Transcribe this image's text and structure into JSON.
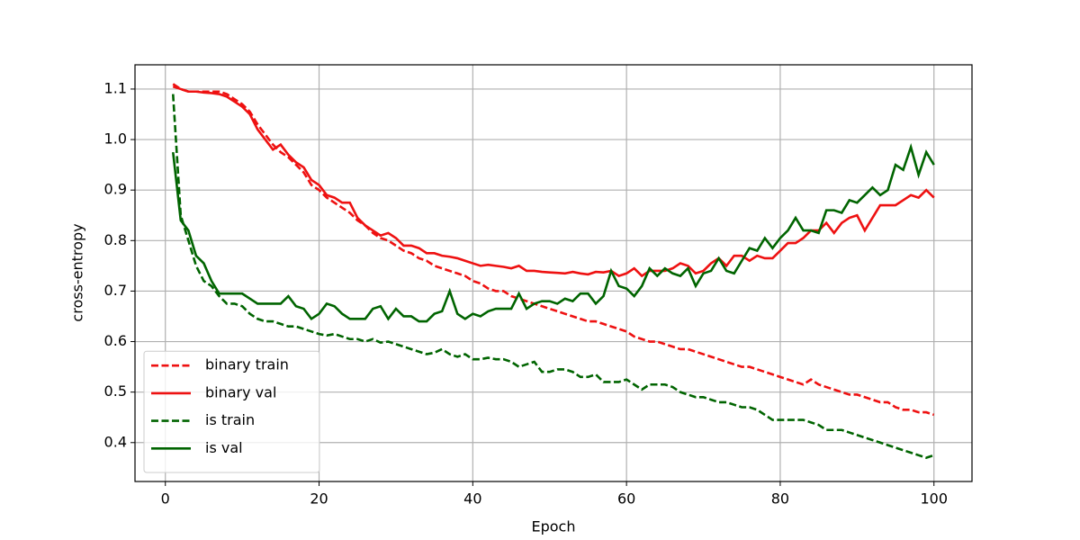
{
  "chart_data": {
    "type": "line",
    "xlabel": "Epoch",
    "ylabel": "cross-entropy",
    "x": [
      1,
      2,
      3,
      4,
      5,
      6,
      7,
      8,
      9,
      10,
      11,
      12,
      13,
      14,
      15,
      16,
      17,
      18,
      19,
      20,
      21,
      22,
      23,
      24,
      25,
      26,
      27,
      28,
      29,
      30,
      31,
      32,
      33,
      34,
      35,
      36,
      37,
      38,
      39,
      40,
      41,
      42,
      43,
      44,
      45,
      46,
      47,
      48,
      49,
      50,
      51,
      52,
      53,
      54,
      55,
      56,
      57,
      58,
      59,
      60,
      61,
      62,
      63,
      64,
      65,
      66,
      67,
      68,
      69,
      70,
      71,
      72,
      73,
      74,
      75,
      76,
      77,
      78,
      79,
      80,
      81,
      82,
      83,
      84,
      85,
      86,
      87,
      88,
      89,
      90,
      91,
      92,
      93,
      94,
      95,
      96,
      97,
      98,
      99,
      100
    ],
    "series": [
      {
        "name": "binary train",
        "color": "#ee1111",
        "linestyle": "dashed",
        "values": [
          1.11,
          1.1,
          1.095,
          1.095,
          1.095,
          1.095,
          1.095,
          1.09,
          1.08,
          1.07,
          1.055,
          1.03,
          1.01,
          0.99,
          0.975,
          0.965,
          0.95,
          0.935,
          0.91,
          0.9,
          0.885,
          0.875,
          0.865,
          0.855,
          0.84,
          0.83,
          0.815,
          0.805,
          0.8,
          0.79,
          0.78,
          0.775,
          0.765,
          0.76,
          0.75,
          0.745,
          0.74,
          0.735,
          0.73,
          0.72,
          0.715,
          0.705,
          0.7,
          0.7,
          0.69,
          0.685,
          0.68,
          0.675,
          0.67,
          0.665,
          0.66,
          0.655,
          0.65,
          0.645,
          0.64,
          0.64,
          0.635,
          0.63,
          0.625,
          0.62,
          0.61,
          0.605,
          0.6,
          0.6,
          0.595,
          0.59,
          0.585,
          0.585,
          0.58,
          0.575,
          0.57,
          0.565,
          0.56,
          0.555,
          0.55,
          0.55,
          0.545,
          0.54,
          0.535,
          0.53,
          0.525,
          0.52,
          0.515,
          0.525,
          0.515,
          0.51,
          0.505,
          0.5,
          0.495,
          0.495,
          0.49,
          0.485,
          0.48,
          0.48,
          0.47,
          0.465,
          0.465,
          0.46,
          0.46,
          0.455
        ]
      },
      {
        "name": "binary val",
        "color": "#ee1111",
        "linestyle": "solid",
        "values": [
          1.105,
          1.1,
          1.095,
          1.095,
          1.093,
          1.092,
          1.09,
          1.085,
          1.075,
          1.065,
          1.05,
          1.02,
          1.0,
          0.98,
          0.99,
          0.97,
          0.955,
          0.945,
          0.92,
          0.91,
          0.89,
          0.885,
          0.875,
          0.875,
          0.845,
          0.83,
          0.82,
          0.81,
          0.815,
          0.805,
          0.79,
          0.79,
          0.785,
          0.775,
          0.775,
          0.77,
          0.768,
          0.765,
          0.76,
          0.755,
          0.75,
          0.752,
          0.75,
          0.748,
          0.745,
          0.75,
          0.74,
          0.74,
          0.738,
          0.737,
          0.736,
          0.735,
          0.738,
          0.735,
          0.733,
          0.738,
          0.737,
          0.74,
          0.73,
          0.735,
          0.745,
          0.73,
          0.74,
          0.74,
          0.74,
          0.745,
          0.755,
          0.75,
          0.735,
          0.74,
          0.755,
          0.765,
          0.75,
          0.77,
          0.77,
          0.76,
          0.77,
          0.765,
          0.765,
          0.78,
          0.795,
          0.795,
          0.805,
          0.82,
          0.82,
          0.835,
          0.815,
          0.835,
          0.845,
          0.85,
          0.82,
          0.845,
          0.87,
          0.87,
          0.87,
          0.88,
          0.89,
          0.885,
          0.9,
          0.885
        ]
      },
      {
        "name": "is train",
        "color": "#006400",
        "linestyle": "dashed",
        "values": [
          1.09,
          0.85,
          0.8,
          0.75,
          0.72,
          0.71,
          0.69,
          0.675,
          0.675,
          0.67,
          0.655,
          0.645,
          0.64,
          0.64,
          0.635,
          0.63,
          0.63,
          0.625,
          0.62,
          0.615,
          0.612,
          0.615,
          0.61,
          0.605,
          0.605,
          0.6,
          0.605,
          0.598,
          0.6,
          0.595,
          0.59,
          0.585,
          0.58,
          0.575,
          0.578,
          0.585,
          0.575,
          0.57,
          0.575,
          0.565,
          0.565,
          0.568,
          0.565,
          0.565,
          0.56,
          0.55,
          0.555,
          0.56,
          0.54,
          0.54,
          0.545,
          0.545,
          0.54,
          0.53,
          0.53,
          0.535,
          0.52,
          0.52,
          0.52,
          0.525,
          0.515,
          0.505,
          0.515,
          0.515,
          0.515,
          0.51,
          0.5,
          0.495,
          0.49,
          0.49,
          0.485,
          0.48,
          0.48,
          0.475,
          0.47,
          0.47,
          0.465,
          0.455,
          0.445,
          0.445,
          0.445,
          0.445,
          0.445,
          0.44,
          0.435,
          0.425,
          0.425,
          0.425,
          0.42,
          0.415,
          0.41,
          0.405,
          0.4,
          0.395,
          0.39,
          0.385,
          0.38,
          0.375,
          0.37,
          0.375
        ]
      },
      {
        "name": "is val",
        "color": "#006400",
        "linestyle": "solid",
        "values": [
          0.975,
          0.84,
          0.82,
          0.77,
          0.755,
          0.72,
          0.695,
          0.695,
          0.695,
          0.695,
          0.685,
          0.675,
          0.675,
          0.675,
          0.675,
          0.69,
          0.67,
          0.665,
          0.645,
          0.655,
          0.675,
          0.67,
          0.655,
          0.645,
          0.645,
          0.645,
          0.665,
          0.67,
          0.645,
          0.665,
          0.65,
          0.65,
          0.64,
          0.64,
          0.655,
          0.66,
          0.7,
          0.655,
          0.645,
          0.655,
          0.65,
          0.66,
          0.665,
          0.665,
          0.665,
          0.695,
          0.665,
          0.675,
          0.68,
          0.68,
          0.675,
          0.685,
          0.68,
          0.695,
          0.695,
          0.675,
          0.69,
          0.74,
          0.71,
          0.705,
          0.69,
          0.71,
          0.745,
          0.73,
          0.745,
          0.735,
          0.73,
          0.745,
          0.71,
          0.735,
          0.74,
          0.765,
          0.74,
          0.735,
          0.76,
          0.785,
          0.78,
          0.805,
          0.785,
          0.805,
          0.82,
          0.845,
          0.82,
          0.82,
          0.815,
          0.86,
          0.86,
          0.855,
          0.88,
          0.875,
          0.89,
          0.905,
          0.89,
          0.9,
          0.95,
          0.94,
          0.985,
          0.93,
          0.975,
          0.95
        ]
      }
    ],
    "xlim": [
      -3.95,
      104.95
    ],
    "ylim": [
      0.323,
      1.148
    ],
    "xticks": [
      0,
      20,
      40,
      60,
      80,
      100
    ],
    "yticks": [
      0.4,
      0.5,
      0.6,
      0.7,
      0.8,
      0.9,
      {
        "value": 1,
        "label": "1.0"
      },
      1.1
    ],
    "grid": true,
    "legend": "lower left"
  }
}
